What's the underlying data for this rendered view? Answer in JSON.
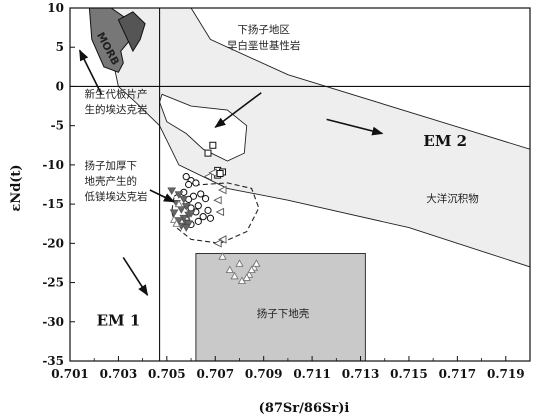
{
  "chart_data": {
    "type": "scatter",
    "title": "",
    "xlabel": "(87Sr/86Sr)i",
    "ylabel": "εNd(t)",
    "xlim": [
      0.701,
      0.72
    ],
    "ylim": [
      -35,
      10
    ],
    "xticks": [
      "0.701",
      "0.703",
      "0.705",
      "0.707",
      "0.709",
      "0.711",
      "0.713",
      "0.715",
      "0.717",
      "0.719"
    ],
    "yticks": [
      "10",
      "5",
      "0",
      "-5",
      "-10",
      "-15",
      "-20",
      "-25",
      "-30",
      "-35"
    ],
    "bulk_earth": {
      "x": 0.7047,
      "y": 0
    },
    "fields": [
      {
        "label": "MORB",
        "polygon": [
          [
            0.7018,
            10
          ],
          [
            0.7027,
            10
          ],
          [
            0.7034,
            8.5
          ],
          [
            0.7035,
            6
          ],
          [
            0.7031,
            4.5
          ],
          [
            0.7032,
            3
          ],
          [
            0.703,
            1.8
          ],
          [
            0.7024,
            2.5
          ],
          [
            0.7019,
            6
          ]
        ]
      },
      {
        "label": "",
        "polygon": [
          [
            0.703,
            8.5
          ],
          [
            0.7036,
            9.5
          ],
          [
            0.7041,
            8
          ],
          [
            0.7039,
            6
          ],
          [
            0.7036,
            4.5
          ]
        ]
      },
      {
        "label": "",
        "polygon": [
          [
            0.7023,
            10
          ],
          [
            0.706,
            10
          ],
          [
            0.7068,
            6
          ],
          [
            0.71,
            1.5
          ],
          [
            0.72,
            -8
          ],
          [
            0.72,
            -23
          ],
          [
            0.715,
            -18
          ],
          [
            0.71,
            -14.5
          ],
          [
            0.7075,
            -13
          ],
          [
            0.7055,
            -10
          ],
          [
            0.7047,
            -5
          ],
          [
            0.7037,
            -2
          ],
          [
            0.703,
            0
          ]
        ]
      },
      {
        "label": "",
        "polygon": [
          [
            0.7048,
            -1
          ],
          [
            0.706,
            -2.5
          ],
          [
            0.7075,
            -3
          ],
          [
            0.7083,
            -5
          ],
          [
            0.7082,
            -8.5
          ],
          [
            0.7075,
            -9.5
          ],
          [
            0.7065,
            -8
          ],
          [
            0.7058,
            -6
          ],
          [
            0.705,
            -4.5
          ],
          [
            0.7047,
            -2
          ]
        ]
      },
      {
        "label": "",
        "polygon": [
          [
            0.7053,
            -14
          ],
          [
            0.706,
            -12.6
          ],
          [
            0.7075,
            -12.3
          ],
          [
            0.7085,
            -13
          ],
          [
            0.7088,
            -15.5
          ],
          [
            0.7083,
            -18.5
          ],
          [
            0.7072,
            -20
          ],
          [
            0.706,
            -19.5
          ],
          [
            0.7054,
            -18
          ],
          [
            0.7052,
            -16
          ]
        ]
      },
      {
        "label": "扬子下地壳",
        "polygon": [
          [
            0.7062,
            -21.3
          ],
          [
            0.7132,
            -21.3
          ],
          [
            0.7132,
            -35
          ],
          [
            0.7062,
            -35
          ]
        ]
      }
    ],
    "series": [
      {
        "name": "",
        "marker": "square",
        "x": [
          0.7069,
          0.7067,
          0.7071,
          0.7073,
          0.7071,
          0.7072
        ],
        "y": [
          -7.5,
          -8.5,
          -10.7,
          -10.9,
          -11.3,
          -11.1
        ]
      },
      {
        "name": "",
        "marker": "circle",
        "x": [
          0.7058,
          0.706,
          0.7059,
          0.7062,
          0.7057,
          0.7064,
          0.7061,
          0.7059,
          0.7066,
          0.7063,
          0.706,
          0.7067,
          0.7062,
          0.7065,
          0.7068,
          0.7058,
          0.7063,
          0.706
        ],
        "y": [
          -11.5,
          -12,
          -12.5,
          -12.3,
          -13.5,
          -13.7,
          -14,
          -14.4,
          -14.3,
          -15.2,
          -15.5,
          -15.8,
          -16,
          -16.6,
          -16.8,
          -17,
          -17.2,
          -17.6
        ]
      },
      {
        "name": "",
        "marker": "triangle-down",
        "x": [
          0.7052,
          0.7055,
          0.7057,
          0.7054,
          0.7058,
          0.7056,
          0.7053,
          0.7059,
          0.7057,
          0.7055,
          0.7058,
          0.7056,
          0.706,
          0.7059,
          0.7058
        ],
        "y": [
          -13.3,
          -13.8,
          -14.4,
          -14.9,
          -15.3,
          -15.7,
          -16.1,
          -16.4,
          -16.8,
          -17.1,
          -17.4,
          -17.8,
          -16.2,
          -17.5,
          -18.0
        ]
      },
      {
        "name": "",
        "marker": "triangle-left",
        "x": [
          0.7067,
          0.7069,
          0.7073,
          0.7071,
          0.7072,
          0.7073,
          0.7071
        ],
        "y": [
          -11.5,
          -11,
          -13.2,
          -14.5,
          -16,
          -19.5,
          -20
        ]
      },
      {
        "name": "",
        "marker": "triangle",
        "x": [
          0.7053,
          0.7055,
          0.7054,
          0.7073,
          0.7076,
          0.708,
          0.7078,
          0.7081,
          0.7084,
          0.7086,
          0.7087,
          0.7085,
          0.7083
        ],
        "y": [
          -17,
          -15,
          -17.5,
          -21.7,
          -23.4,
          -22.6,
          -24.2,
          -24.8,
          -24,
          -23.1,
          -22.6,
          -23.4,
          -24.4
        ]
      }
    ],
    "annotations": [
      {
        "text": "下扬子地区",
        "x": 0.709,
        "y": 6.8,
        "align": "middle"
      },
      {
        "text": "早白垩世基性岩",
        "x": 0.709,
        "y": 4.8,
        "align": "middle"
      },
      {
        "text": "新生代板片产",
        "x": 0.7016,
        "y": -1.4,
        "align": "start"
      },
      {
        "text": "生的埃达克岩",
        "x": 0.7016,
        "y": -3.4,
        "align": "start"
      },
      {
        "text": "扬子加厚下",
        "x": 0.7016,
        "y": -10.5,
        "align": "start"
      },
      {
        "text": "地壳产生的",
        "x": 0.7016,
        "y": -12.5,
        "align": "start"
      },
      {
        "text": "低镁埃达克岩",
        "x": 0.7016,
        "y": -14.5,
        "align": "start"
      },
      {
        "text": "大洋沉积物",
        "x": 0.7168,
        "y": -14.7,
        "align": "middle"
      },
      {
        "text": "扬子下地壳",
        "x": 0.7098,
        "y": -29.4,
        "align": "middle"
      },
      {
        "text": "EM 2",
        "x": 0.7165,
        "y": -7.6,
        "align": "middle",
        "bold": true
      },
      {
        "text": "EM 1",
        "x": 0.703,
        "y": -30.5,
        "align": "middle",
        "bold": true
      }
    ],
    "arrows": [
      {
        "from": [
          0.7023,
          -1.0
        ],
        "to": [
          0.7014,
          4.6
        ]
      },
      {
        "from": [
          0.7089,
          -0.8
        ],
        "to": [
          0.707,
          -5.2
        ]
      },
      {
        "from": [
          0.7043,
          -13.2
        ],
        "to": [
          0.7053,
          -14.7
        ]
      },
      {
        "from": [
          0.7116,
          -4.2
        ],
        "to": [
          0.7139,
          -6.0
        ]
      },
      {
        "from": [
          0.7032,
          -21.8
        ],
        "to": [
          0.7042,
          -26.6
        ]
      }
    ],
    "grid": false,
    "legend": "none"
  }
}
